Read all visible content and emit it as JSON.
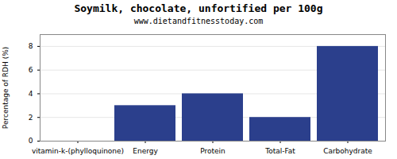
{
  "chart_data": {
    "type": "bar",
    "title": "Soymilk, chocolate, unfortified per 100g",
    "subtitle": "www.dietandfitnesstoday.com",
    "categories": [
      "vitamin-k-(phylloquinone)",
      "Energy",
      "Protein",
      "Total-Fat",
      "Carbohydrate"
    ],
    "values": [
      0,
      3,
      4,
      2,
      8
    ],
    "color": "#2b3f8c",
    "ylabel": "Percentage of RDH (%)",
    "ylim": [
      0,
      9
    ],
    "yticks": [
      0,
      2,
      4,
      6,
      8
    ],
    "grid": true
  }
}
